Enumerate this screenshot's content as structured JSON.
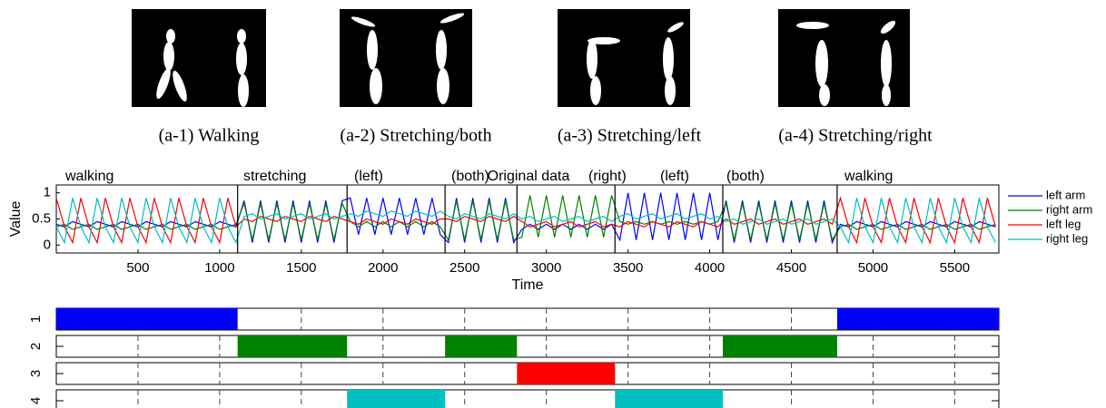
{
  "figures": {
    "captions": [
      "(a-1) Walking",
      "(a-2) Stretching/both",
      "(a-3) Stretching/left",
      "(a-4) Stretching/right"
    ]
  },
  "chart_data": [
    {
      "type": "line",
      "title": "Original data",
      "x_label": "Time",
      "y_label": "Value",
      "xlim": [
        0,
        5770
      ],
      "ylim": [
        -0.15,
        1.15
      ],
      "xticks": [
        500,
        1000,
        1500,
        2000,
        2500,
        3000,
        3500,
        4000,
        4500,
        5000,
        5500
      ],
      "yticks": [
        0,
        0.5,
        1
      ],
      "legend": "outside-right",
      "boundaries": [
        1110,
        1780,
        2380,
        2820,
        3420,
        4080,
        4780
      ],
      "annotations": [
        {
          "text": "walking",
          "color": "#0000ff"
        },
        {
          "text": "stretching",
          "color": "#008000"
        },
        {
          "text": "(left)",
          "color": "#00bfbf"
        },
        {
          "text": "(both)",
          "color": "#008000"
        },
        {
          "text": "(right)",
          "color": "#ff0000"
        },
        {
          "text": "(left)",
          "color": "#00bfbf"
        },
        {
          "text": "(both)",
          "color": "#008000"
        },
        {
          "text": "walking",
          "color": "#0000ff"
        }
      ],
      "x": [
        0,
        50,
        100,
        150,
        200,
        250,
        300,
        350,
        400,
        450,
        500,
        550,
        600,
        650,
        700,
        750,
        800,
        850,
        900,
        950,
        1000,
        1050,
        1100,
        1150,
        1200,
        1250,
        1300,
        1350,
        1400,
        1450,
        1500,
        1550,
        1600,
        1650,
        1700,
        1750,
        1800,
        1850,
        1900,
        1950,
        2000,
        2050,
        2100,
        2150,
        2200,
        2250,
        2300,
        2350,
        2400,
        2450,
        2500,
        2550,
        2600,
        2650,
        2700,
        2750,
        2800,
        2850,
        2900,
        2950,
        3000,
        3050,
        3100,
        3150,
        3200,
        3250,
        3300,
        3350,
        3400,
        3450,
        3500,
        3550,
        3600,
        3650,
        3700,
        3750,
        3800,
        3850,
        3900,
        3950,
        4000,
        4050,
        4100,
        4150,
        4200,
        4250,
        4300,
        4350,
        4400,
        4450,
        4500,
        4550,
        4600,
        4650,
        4700,
        4750,
        4800,
        4850,
        4900,
        4950,
        5000,
        5050,
        5100,
        5150,
        5200,
        5250,
        5300,
        5350,
        5400,
        5450,
        5500,
        5550,
        5600,
        5650,
        5700,
        5750
      ],
      "series": [
        {
          "name": "left arm",
          "color": "#0000ff",
          "values": [
            0.4,
            0.35,
            0.45,
            0.4,
            0.35,
            0.45,
            0.4,
            0.35,
            0.45,
            0.4,
            0.35,
            0.45,
            0.4,
            0.35,
            0.45,
            0.4,
            0.35,
            0.45,
            0.4,
            0.35,
            0.45,
            0.4,
            0.35,
            0.85,
            0.05,
            0.85,
            0.05,
            0.85,
            0.05,
            0.85,
            0.05,
            0.85,
            0.05,
            0.85,
            0.05,
            0.85,
            0.9,
            0.2,
            0.9,
            0.2,
            0.9,
            0.2,
            0.9,
            0.2,
            0.9,
            0.2,
            0.9,
            0.2,
            0.05,
            0.9,
            0.05,
            0.9,
            0.05,
            0.9,
            0.05,
            0.9,
            0.05,
            0.3,
            0.4,
            0.3,
            0.4,
            0.3,
            0.4,
            0.3,
            0.4,
            0.3,
            0.4,
            0.3,
            0.4,
            0.1,
            1,
            0.1,
            1,
            0.1,
            1,
            0.1,
            1,
            0.1,
            1,
            0.1,
            1,
            0.1,
            0.85,
            0.05,
            0.85,
            0.05,
            0.85,
            0.05,
            0.85,
            0.05,
            0.85,
            0.05,
            0.85,
            0.05,
            0.85,
            0.05,
            0.4,
            0.35,
            0.45,
            0.4,
            0.35,
            0.45,
            0.4,
            0.35,
            0.45,
            0.4,
            0.35,
            0.45,
            0.4,
            0.35,
            0.45,
            0.4,
            0.35,
            0.45,
            0.4,
            0.35
          ]
        },
        {
          "name": "right arm",
          "color": "#008000",
          "values": [
            0.35,
            0.4,
            0.3,
            0.35,
            0.4,
            0.3,
            0.35,
            0.4,
            0.3,
            0.35,
            0.4,
            0.3,
            0.35,
            0.4,
            0.3,
            0.35,
            0.4,
            0.3,
            0.35,
            0.4,
            0.3,
            0.35,
            0.4,
            0.8,
            0.1,
            0.8,
            0.1,
            0.8,
            0.1,
            0.8,
            0.1,
            0.8,
            0.1,
            0.8,
            0.1,
            0.8,
            0.45,
            0.35,
            0.45,
            0.35,
            0.45,
            0.35,
            0.45,
            0.35,
            0.45,
            0.35,
            0.45,
            0.35,
            0.1,
            0.85,
            0.1,
            0.85,
            0.1,
            0.85,
            0.1,
            0.85,
            0.1,
            0.15,
            0.95,
            0.15,
            0.95,
            0.15,
            0.95,
            0.15,
            0.95,
            0.15,
            0.95,
            0.15,
            0.95,
            0.45,
            0.4,
            0.45,
            0.4,
            0.45,
            0.4,
            0.45,
            0.4,
            0.45,
            0.4,
            0.45,
            0.4,
            0.45,
            0.8,
            0.1,
            0.8,
            0.1,
            0.8,
            0.1,
            0.8,
            0.1,
            0.8,
            0.1,
            0.8,
            0.1,
            0.8,
            0.1,
            0.35,
            0.4,
            0.3,
            0.35,
            0.4,
            0.3,
            0.35,
            0.4,
            0.3,
            0.35,
            0.4,
            0.3,
            0.35,
            0.4,
            0.3,
            0.35,
            0.4,
            0.3,
            0.35,
            0.4
          ]
        },
        {
          "name": "left leg",
          "color": "#ff0000",
          "values": [
            0.9,
            0.35,
            0.05,
            0.9,
            0.35,
            0.05,
            0.9,
            0.35,
            0.05,
            0.9,
            0.35,
            0.05,
            0.9,
            0.35,
            0.05,
            0.9,
            0.35,
            0.05,
            0.9,
            0.35,
            0.05,
            0.9,
            0.35,
            0.5,
            0.45,
            0.55,
            0.5,
            0.45,
            0.55,
            0.5,
            0.45,
            0.55,
            0.5,
            0.45,
            0.55,
            0.5,
            0.45,
            0.4,
            0.5,
            0.45,
            0.4,
            0.5,
            0.45,
            0.4,
            0.5,
            0.45,
            0.4,
            0.5,
            0.5,
            0.45,
            0.55,
            0.5,
            0.45,
            0.55,
            0.5,
            0.45,
            0.55,
            0.45,
            0.35,
            0.4,
            0.45,
            0.35,
            0.4,
            0.45,
            0.35,
            0.4,
            0.45,
            0.35,
            0.4,
            0.35,
            0.45,
            0.4,
            0.35,
            0.45,
            0.4,
            0.35,
            0.45,
            0.4,
            0.35,
            0.45,
            0.4,
            0.35,
            0.5,
            0.4,
            0.45,
            0.5,
            0.4,
            0.45,
            0.5,
            0.4,
            0.45,
            0.5,
            0.4,
            0.45,
            0.5,
            0.4,
            0.9,
            0.35,
            0.05,
            0.9,
            0.35,
            0.05,
            0.9,
            0.35,
            0.05,
            0.9,
            0.35,
            0.05,
            0.9,
            0.35,
            0.05,
            0.9,
            0.35,
            0.05,
            0.9,
            0.35
          ]
        },
        {
          "name": "right leg",
          "color": "#00bfbf",
          "values": [
            0.35,
            0.05,
            0.9,
            0.35,
            0.05,
            0.9,
            0.35,
            0.05,
            0.9,
            0.35,
            0.05,
            0.9,
            0.35,
            0.05,
            0.9,
            0.35,
            0.05,
            0.9,
            0.35,
            0.05,
            0.9,
            0.35,
            0.05,
            0.55,
            0.6,
            0.5,
            0.55,
            0.6,
            0.5,
            0.55,
            0.6,
            0.5,
            0.55,
            0.6,
            0.5,
            0.55,
            0.6,
            0.55,
            0.65,
            0.6,
            0.55,
            0.65,
            0.6,
            0.55,
            0.65,
            0.6,
            0.55,
            0.65,
            0.55,
            0.5,
            0.6,
            0.55,
            0.5,
            0.6,
            0.55,
            0.5,
            0.6,
            0.5,
            0.55,
            0.45,
            0.5,
            0.55,
            0.45,
            0.5,
            0.55,
            0.45,
            0.5,
            0.55,
            0.45,
            0.55,
            0.6,
            0.5,
            0.55,
            0.6,
            0.5,
            0.55,
            0.6,
            0.5,
            0.55,
            0.6,
            0.5,
            0.55,
            0.45,
            0.5,
            0.4,
            0.45,
            0.5,
            0.4,
            0.45,
            0.5,
            0.4,
            0.45,
            0.5,
            0.4,
            0.45,
            0.5,
            0.35,
            0.05,
            0.9,
            0.35,
            0.05,
            0.9,
            0.35,
            0.05,
            0.9,
            0.35,
            0.05,
            0.9,
            0.35,
            0.05,
            0.9,
            0.35,
            0.05,
            0.9,
            0.35,
            0.05
          ]
        }
      ]
    },
    {
      "type": "timeline",
      "xlim": [
        0,
        5770
      ],
      "xticks": [
        500,
        1000,
        1500,
        2000,
        2500,
        3000,
        3500,
        4000,
        4500,
        5000,
        5500
      ],
      "series": [
        {
          "name": "1",
          "color": "#0000ff",
          "intervals": [
            [
              0,
              1110
            ],
            [
              4780,
              5770
            ]
          ]
        },
        {
          "name": "2",
          "color": "#008000",
          "intervals": [
            [
              1110,
              1780
            ],
            [
              2380,
              2820
            ],
            [
              4080,
              4780
            ]
          ]
        },
        {
          "name": "3",
          "color": "#ff0000",
          "intervals": [
            [
              2820,
              3420
            ]
          ]
        },
        {
          "name": "4",
          "color": "#00bfbf",
          "intervals": [
            [
              1780,
              2380
            ],
            [
              3420,
              4080
            ]
          ]
        }
      ]
    }
  ]
}
